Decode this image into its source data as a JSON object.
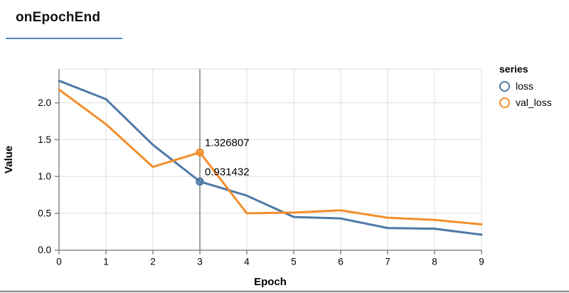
{
  "page": {
    "accent_underline_color": "#5b87c5",
    "bottom_bar_color": "#8f8f8f"
  },
  "header": {
    "title": "onEpochEnd"
  },
  "legend": {
    "title": "series",
    "items": [
      {
        "label": "loss",
        "color": "#4e79a7"
      },
      {
        "label": "val_loss",
        "color": "#f28e2b"
      }
    ]
  },
  "chart_data": {
    "type": "line",
    "title": "onEpochEnd",
    "xlabel": "Epoch",
    "ylabel": "Value",
    "x": [
      0,
      1,
      2,
      3,
      4,
      5,
      6,
      7,
      8,
      9
    ],
    "series": [
      {
        "name": "loss",
        "color": "#4e79a7",
        "values": [
          2.3,
          2.05,
          1.43,
          0.931432,
          0.74,
          0.45,
          0.43,
          0.3,
          0.29,
          0.21
        ]
      },
      {
        "name": "val_loss",
        "color": "#f28e2b",
        "values": [
          2.18,
          1.71,
          1.13,
          1.326807,
          0.5,
          0.51,
          0.54,
          0.44,
          0.41,
          0.35
        ]
      }
    ],
    "xticks": [
      "0",
      "1",
      "2",
      "3",
      "4",
      "5",
      "6",
      "7",
      "8",
      "9"
    ],
    "yticks": [
      "0.0",
      "0.5",
      "1.0",
      "1.5",
      "2.0"
    ],
    "xlim": [
      0,
      9
    ],
    "ylim": [
      0,
      2.46
    ],
    "grid": true,
    "legend_position": "right",
    "axis_color": "#888888",
    "grid_color": "#dddddd",
    "hover": {
      "x": 3,
      "rule_color": "#808080",
      "labels": [
        {
          "series": "val_loss",
          "text": "1.326807"
        },
        {
          "series": "loss",
          "text": "0.931432"
        }
      ]
    }
  }
}
